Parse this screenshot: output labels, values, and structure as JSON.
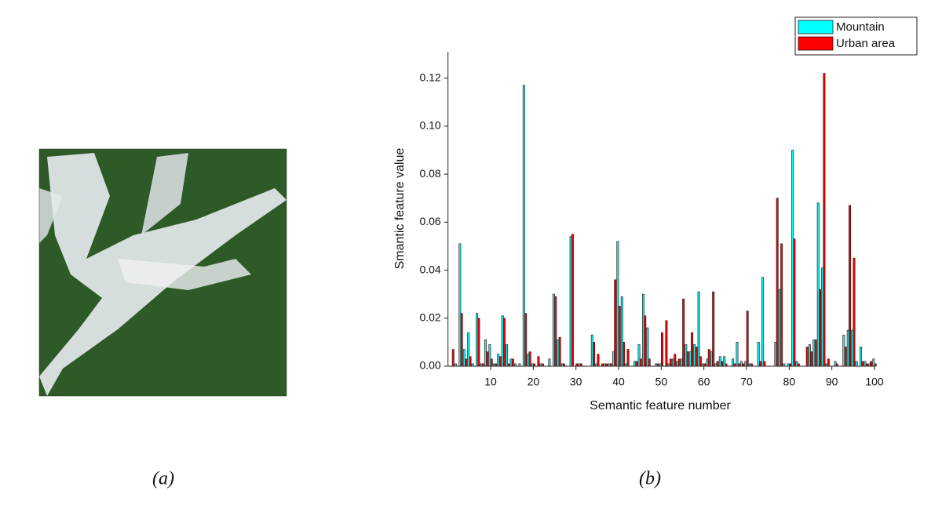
{
  "figure": {
    "labels": [
      "(a)",
      "(b)"
    ]
  },
  "chart_data": {
    "type": "bar",
    "xlabel": "Semantic feature number",
    "ylabel": "Smantic feature value",
    "x": [
      1,
      2,
      3,
      4,
      5,
      6,
      7,
      8,
      9,
      10,
      11,
      12,
      13,
      14,
      15,
      16,
      17,
      18,
      19,
      20,
      21,
      22,
      23,
      24,
      25,
      26,
      27,
      28,
      29,
      30,
      31,
      32,
      33,
      34,
      35,
      36,
      37,
      38,
      39,
      40,
      41,
      42,
      43,
      44,
      45,
      46,
      47,
      48,
      49,
      50,
      51,
      52,
      53,
      54,
      55,
      56,
      57,
      58,
      59,
      60,
      61,
      62,
      63,
      64,
      65,
      66,
      67,
      68,
      69,
      70,
      71,
      72,
      73,
      74,
      75,
      76,
      77,
      78,
      79,
      80,
      81,
      82,
      83,
      84,
      85,
      86,
      87,
      88,
      89,
      90,
      91,
      92,
      93,
      94,
      95,
      96,
      97,
      98,
      99,
      100
    ],
    "series": [
      {
        "name": "Mountain",
        "color": "#00ffff",
        "values": [
          0,
          0.001,
          0.051,
          0.007,
          0.014,
          0.001,
          0.022,
          0.001,
          0.011,
          0.009,
          0.001,
          0.005,
          0.021,
          0.009,
          0.003,
          0.001,
          0.001,
          0.117,
          0.005,
          0.001,
          0,
          0.001,
          0,
          0.003,
          0.03,
          0.011,
          0.001,
          0,
          0.054,
          0,
          0.001,
          0,
          0,
          0.013,
          0.001,
          0,
          0.001,
          0.001,
          0.006,
          0.052,
          0.029,
          0.001,
          0,
          0.002,
          0.009,
          0.03,
          0.016,
          0,
          0.001,
          0.001,
          0,
          0.001,
          0.003,
          0.002,
          0.003,
          0.009,
          0.006,
          0.009,
          0.031,
          0.001,
          0.003,
          0.006,
          0.001,
          0.004,
          0.004,
          0,
          0.003,
          0.01,
          0.002,
          0.002,
          0.001,
          0,
          0.01,
          0.037,
          0,
          0,
          0.01,
          0.032,
          0.001,
          0.001,
          0.09,
          0.002,
          0,
          0,
          0.009,
          0.011,
          0.068,
          0.041,
          0.001,
          0,
          0.002,
          0,
          0.013,
          0.015,
          0.015,
          0.002,
          0.008,
          0.002,
          0.001,
          0.003
        ]
      },
      {
        "name": "Urban area",
        "color": "#ff0000",
        "values": [
          0.007,
          0,
          0.022,
          0.003,
          0.004,
          0,
          0.02,
          0.001,
          0.006,
          0.003,
          0.001,
          0.004,
          0.02,
          0.001,
          0.003,
          0,
          0,
          0.022,
          0.006,
          0.001,
          0.004,
          0.001,
          0,
          0,
          0.029,
          0.012,
          0.001,
          0,
          0.055,
          0.001,
          0.001,
          0,
          0,
          0.01,
          0.005,
          0.001,
          0.001,
          0.001,
          0.036,
          0.025,
          0.01,
          0.007,
          0,
          0.002,
          0.003,
          0.021,
          0.003,
          0,
          0.001,
          0.014,
          0.019,
          0.003,
          0.005,
          0.003,
          0.028,
          0.006,
          0.014,
          0.008,
          0.004,
          0.001,
          0.007,
          0.031,
          0.002,
          0.002,
          0.001,
          0,
          0.001,
          0.001,
          0.001,
          0.023,
          0.001,
          0,
          0.002,
          0.002,
          0,
          0,
          0.07,
          0.051,
          0,
          0.001,
          0.053,
          0.001,
          0,
          0.008,
          0.006,
          0.011,
          0.032,
          0.122,
          0.003,
          0,
          0.001,
          0,
          0.008,
          0.067,
          0.045,
          0,
          0.002,
          0.001,
          0.002,
          0.001
        ]
      }
    ],
    "xlim": [
      0,
      100
    ],
    "xticks": [
      10,
      20,
      30,
      40,
      50,
      60,
      70,
      80,
      90,
      100
    ],
    "ylim": [
      0,
      0.131
    ],
    "yticks": [
      {
        "value": 0,
        "label": "0.00"
      },
      0.02,
      0.04,
      0.06,
      0.08,
      {
        "value": 0.1,
        "label": "0.10"
      },
      0.12
    ],
    "legend": "top-right"
  }
}
